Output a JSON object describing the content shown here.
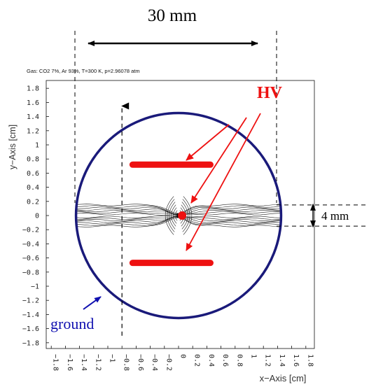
{
  "chart_data": {
    "type": "diagram-plot",
    "title": "Gas: CO2 7%, Ar 93%, T=300 K, p=2.96078 atm",
    "xlabel": "x−Axis [cm]",
    "ylabel": "y−Axis [cm]",
    "xlim": [
      -1.9,
      1.9
    ],
    "ylim": [
      -1.9,
      1.9
    ],
    "x_ticks": [
      -1.8,
      -1.6,
      -1.4,
      -1.2,
      -1,
      -0.8,
      -0.6,
      -0.4,
      -0.2,
      0,
      0.2,
      0.4,
      0.6,
      0.8,
      1,
      1.2,
      1.4,
      1.6,
      1.8
    ],
    "y_ticks": [
      1.8,
      1.6,
      1.4,
      1.2,
      1,
      0.8,
      0.6,
      0.4,
      0.2,
      0,
      -0.2,
      -0.4,
      -0.6,
      -0.8,
      -1,
      -1.2,
      -1.4,
      -1.6,
      -1.8
    ],
    "ground_circle": {
      "center": [
        0,
        0
      ],
      "radius": 1.45,
      "color": "#1a1a7a"
    },
    "electrodes": [
      {
        "kind": "strip",
        "y": 0.72,
        "x_from": -0.65,
        "x_to": 0.45
      },
      {
        "kind": "strip",
        "y": -0.67,
        "x_from": -0.65,
        "x_to": 0.45
      },
      {
        "kind": "wire",
        "x": 0.05,
        "y": 0.0
      }
    ],
    "field_band_half_height": 0.15,
    "electrode_color": "#ee1111",
    "arrow_color": "#ee1111",
    "ground_label_color": "#1010b0"
  },
  "annotations": {
    "top_dim": "30 mm",
    "right_dim": "4 mm",
    "hv": "HV",
    "ground": "ground"
  },
  "tick_labels": {
    "x": [
      "−1.8",
      "−1.6",
      "−1.4",
      "−1.2",
      "−1",
      "−0.8",
      "−0.6",
      "−0.4",
      "−0.2",
      "0",
      "0.2",
      "0.4",
      "0.6",
      "0.8",
      "1",
      "1.2",
      "1.4",
      "1.6",
      "1.8"
    ],
    "y": [
      "1.8",
      "1.6",
      "1.4",
      "1.2",
      "1",
      "0.8",
      "0.6",
      "0.4",
      "0.2",
      "0",
      "−0.2",
      "−0.4",
      "−0.6",
      "−0.8",
      "−1",
      "−1.2",
      "−1.4",
      "−1.6",
      "−1.8"
    ]
  }
}
